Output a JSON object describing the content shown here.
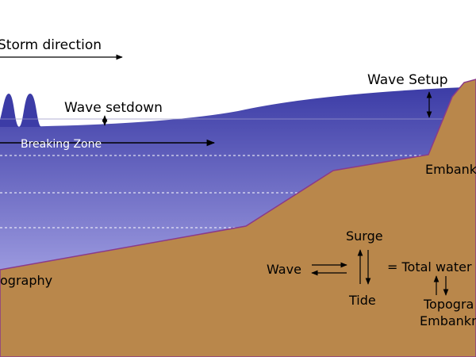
{
  "labels": {
    "storm_direction": "Storm direction",
    "wave_setup": "Wave Setup",
    "wave_setdown": "Wave setdown",
    "breaking_zone": "Breaking Zone",
    "embankment_top": "Embank",
    "topography_left": "ography",
    "surge": "Surge",
    "wave": "Wave",
    "total_water": "= Total water",
    "tide": "Tide",
    "topography_right": "Topogra",
    "embankment_bottom": "Embankm"
  }
}
